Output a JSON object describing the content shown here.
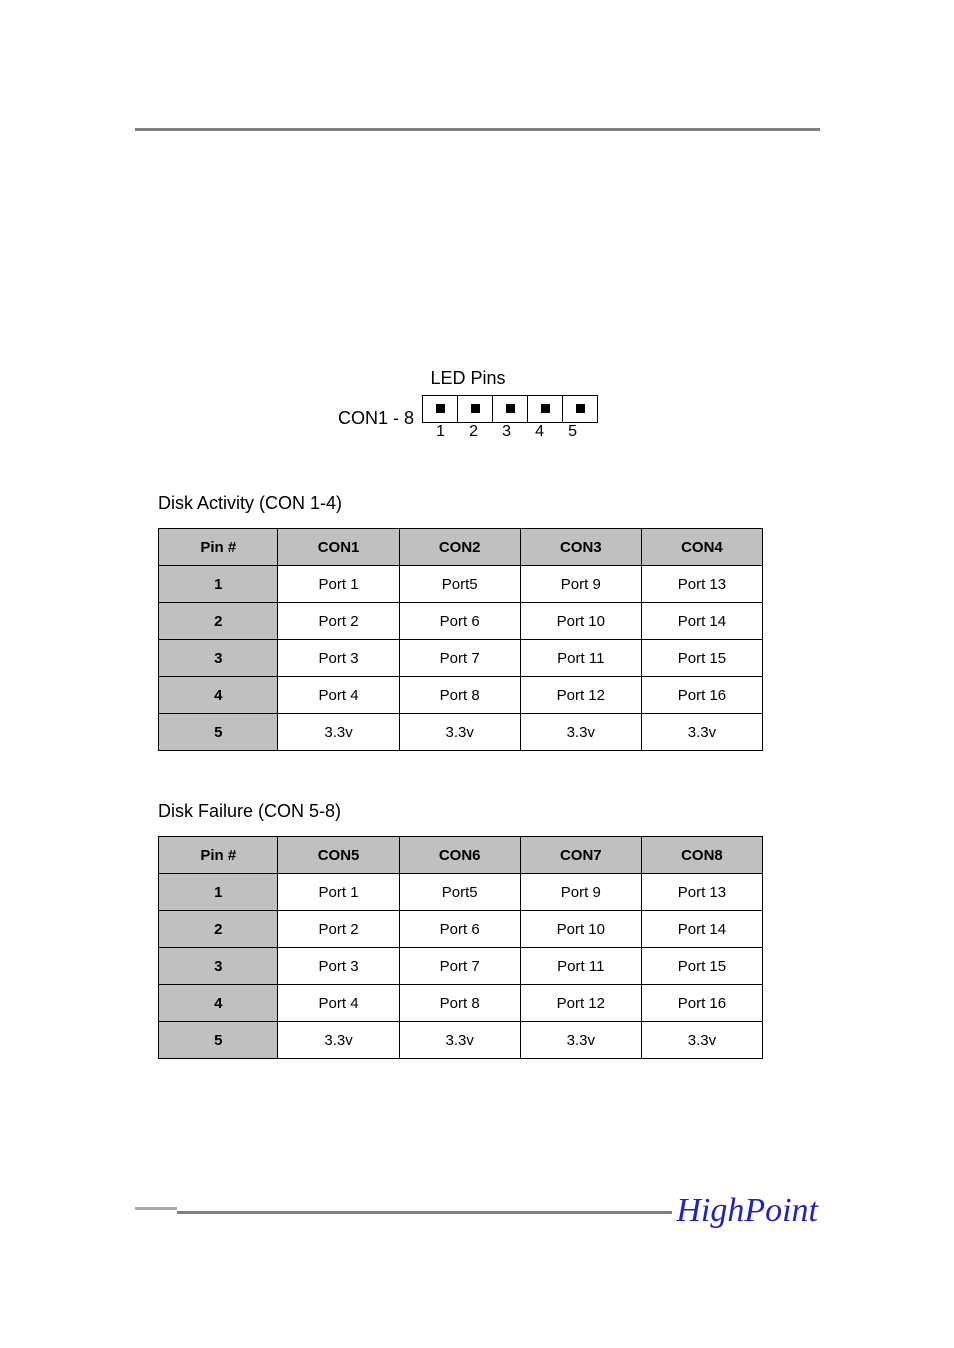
{
  "led_pins": {
    "title": "LED Pins",
    "row_label": "CON1 - 8",
    "pin_count": 5,
    "pin_labels": [
      "1",
      "2",
      "3",
      "4",
      "5"
    ]
  },
  "activity_table": {
    "caption": "Disk Activity (CON 1-4)",
    "columns": [
      "Pin #",
      "CON1",
      "CON2",
      "CON3",
      "CON4"
    ],
    "rows": [
      [
        "1",
        "Port 1",
        "Port5",
        "Port 9",
        "Port 13"
      ],
      [
        "2",
        "Port 2",
        "Port 6",
        "Port 10",
        "Port 14"
      ],
      [
        "3",
        "Port 3",
        "Port 7",
        "Port 11",
        "Port 15"
      ],
      [
        "4",
        "Port 4",
        "Port 8",
        "Port 12",
        "Port 16"
      ],
      [
        "5",
        "3.3v",
        "3.3v",
        "3.3v",
        "3.3v"
      ]
    ]
  },
  "failure_table": {
    "caption": "Disk Failure (CON 5-8)",
    "columns": [
      "Pin #",
      "CON5",
      "CON6",
      "CON7",
      "CON8"
    ],
    "rows": [
      [
        "1",
        "Port 1",
        "Port5",
        "Port 9",
        "Port 13"
      ],
      [
        "2",
        "Port 2",
        "Port 6",
        "Port 10",
        "Port 14"
      ],
      [
        "3",
        "Port 3",
        "Port 7",
        "Port 11",
        "Port 15"
      ],
      [
        "4",
        "Port 4",
        "Port 8",
        "Port 12",
        "Port 16"
      ],
      [
        "5",
        "3.3v",
        "3.3v",
        "3.3v",
        "3.3v"
      ]
    ]
  },
  "footer": {
    "logo_text": "HighPoint"
  },
  "colors": {
    "rule": "#808080",
    "table_header_bg": "#c0c0c0",
    "table_border": "#000000",
    "logo": "#2020cc",
    "background": "#ffffff",
    "text": "#000000"
  }
}
